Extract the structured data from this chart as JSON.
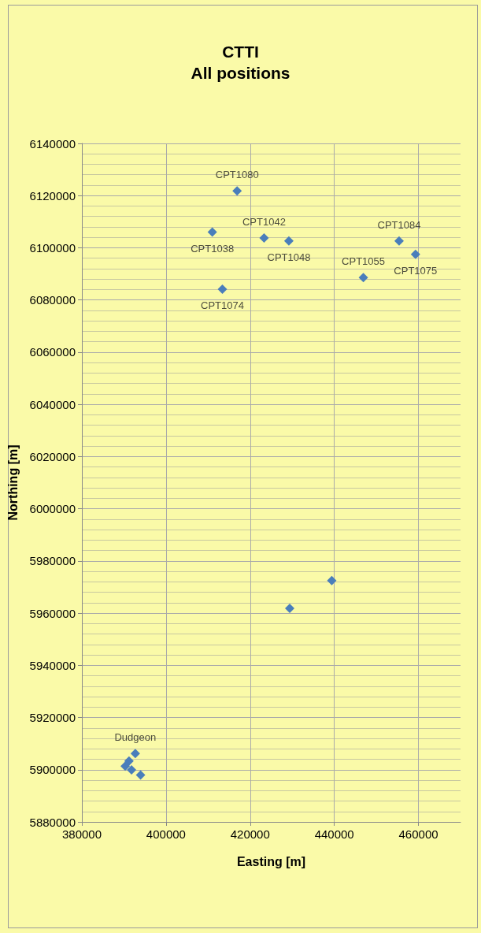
{
  "chart_data": {
    "type": "scatter",
    "title": "CTTI",
    "subtitle": "All positions",
    "xlabel": "Easting [m]",
    "ylabel": "Northing [m]",
    "series": [
      {
        "color": "#4a7ebb",
        "x": [
          416900,
          411000,
          423300,
          429200,
          455400,
          459300,
          446900,
          413400,
          429400,
          439400,
          392700,
          391200,
          390300,
          391800,
          393950
        ],
        "values": [
          6121800,
          6106000,
          6103800,
          6102600,
          6102600,
          6097500,
          6088600,
          6084100,
          5961800,
          5972500,
          5906200,
          5903300,
          5901400,
          5899900,
          5898000
        ]
      }
    ],
    "annotations": [
      {
        "text": "CPT1080",
        "x": 416900,
        "y": 6121800
      },
      {
        "text": "CPT1038",
        "x": 411000,
        "y": 6106000
      },
      {
        "text": "CPT1042",
        "x": 423300,
        "y": 6103800
      },
      {
        "text": "CPT1048",
        "x": 429200,
        "y": 6102600
      },
      {
        "text": "CPT1084",
        "x": 455400,
        "y": 6102600
      },
      {
        "text": "CPT1075",
        "x": 459300,
        "y": 6097500
      },
      {
        "text": "CPT1055",
        "x": 446900,
        "y": 6088600
      },
      {
        "text": "CPT1074",
        "x": 413400,
        "y": 6084100
      },
      {
        "text": "Dudgeon",
        "x": 392700,
        "y": 5906200
      }
    ],
    "xlim": [
      380000,
      470000
    ],
    "xticks": [
      380000,
      400000,
      420000,
      440000,
      460000
    ],
    "ylim": [
      5880000,
      6140000
    ],
    "yticks": [
      5880000,
      5900000,
      5920000,
      5940000,
      5960000,
      5980000,
      6000000,
      6020000,
      6040000,
      6060000,
      6080000,
      6100000,
      6120000,
      6140000
    ],
    "grid": true,
    "marker": "diamond"
  }
}
